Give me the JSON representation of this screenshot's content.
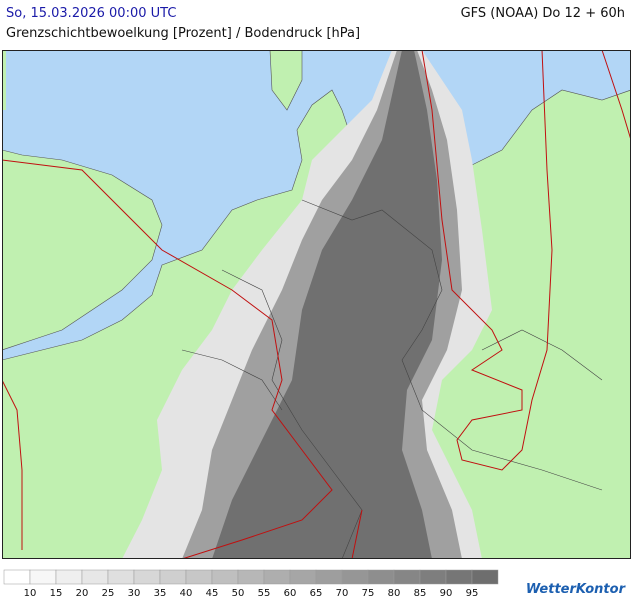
{
  "header": {
    "date": "So, 15.03.2026 00:00 UTC",
    "model": "GFS (NOAA) Do 12 + 60h",
    "subtitle": "Grenzschichtbewoelkung [Prozent] / Bodendruck [hPa]"
  },
  "legend": {
    "labels": [
      10,
      15,
      20,
      25,
      30,
      35,
      40,
      45,
      50,
      55,
      60,
      65,
      70,
      75,
      80,
      85,
      90,
      95
    ]
  },
  "footer": {
    "logo": "WetterKontor"
  }
}
